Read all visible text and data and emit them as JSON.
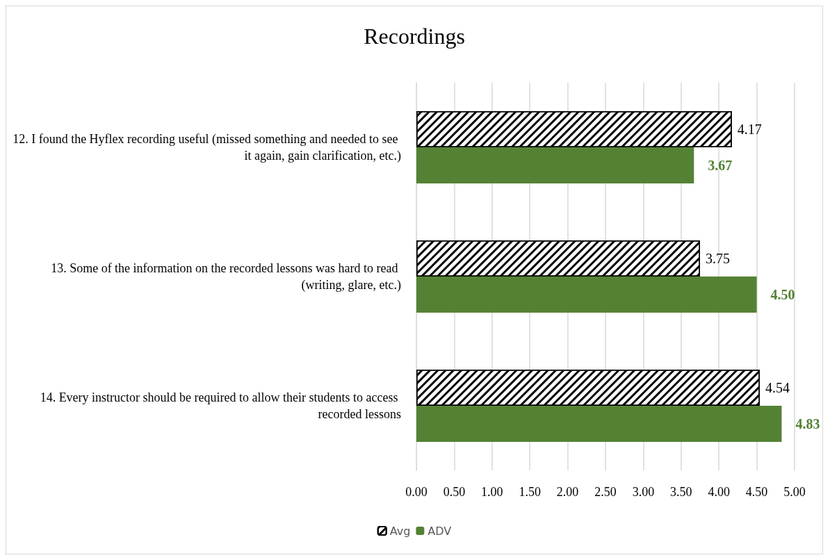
{
  "chart_data": {
    "type": "bar",
    "orientation": "horizontal",
    "title": "Recordings",
    "categories": [
      "12. I found the Hyflex recording useful (missed something and needed to see it again, gain clarification, etc.)",
      "13. Some of the information on the recorded lessons was hard to read (writing, glare, etc.)",
      "14. Every instructor should be required to allow their students to access recorded lessons"
    ],
    "series": [
      {
        "name": "Avg",
        "color": "#000000",
        "values": [
          4.17,
          3.75,
          4.54
        ],
        "value_labels": [
          "4.17",
          "3.75",
          "4.54"
        ]
      },
      {
        "name": "ADV",
        "color": "#548235",
        "values": [
          3.67,
          4.5,
          4.83
        ],
        "value_labels": [
          "3.67",
          "4.50",
          "4.83"
        ]
      }
    ],
    "xlim": [
      0,
      5
    ],
    "xticks": [
      {
        "value": 0,
        "label": "0.00"
      },
      {
        "value": 0.5,
        "label": "0.50"
      },
      {
        "value": 1,
        "label": "1.00"
      },
      {
        "value": 1.5,
        "label": "1.50"
      },
      {
        "value": 2,
        "label": "2.00"
      },
      {
        "value": 2.5,
        "label": "2.50"
      },
      {
        "value": 3,
        "label": "3.00"
      },
      {
        "value": 3.5,
        "label": "3.50"
      },
      {
        "value": 4,
        "label": "4.00"
      },
      {
        "value": 4.5,
        "label": "4.50"
      },
      {
        "value": 5,
        "label": "5.00"
      }
    ],
    "grid": "x",
    "legend": "bottom"
  }
}
